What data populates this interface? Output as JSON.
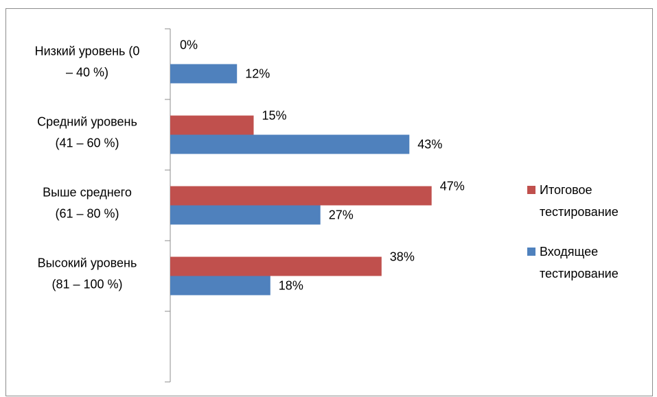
{
  "chart_data": {
    "type": "bar",
    "orientation": "horizontal",
    "categories": [
      [
        "Низкий уровень (0",
        "– 40 %)"
      ],
      [
        "Средний уровень",
        "(41 – 60 %)"
      ],
      [
        "Выше среднего",
        "(61 – 80 %)"
      ],
      [
        "Высокий уровень",
        "(81 – 100 %)"
      ]
    ],
    "series": [
      {
        "name": [
          "Итоговое",
          "тестирование"
        ],
        "color": "#C0504D",
        "values": [
          0,
          15,
          47,
          38
        ],
        "labels": [
          "0%",
          "15%",
          "47%",
          "38%"
        ]
      },
      {
        "name": [
          "Входящее",
          "тестирование"
        ],
        "color": "#4F81BD",
        "values": [
          12,
          43,
          27,
          18
        ],
        "labels": [
          "12%",
          "43%",
          "27%",
          "18%"
        ]
      }
    ],
    "xlim": [
      0,
      60
    ],
    "legend_position": "right",
    "grid": false
  }
}
